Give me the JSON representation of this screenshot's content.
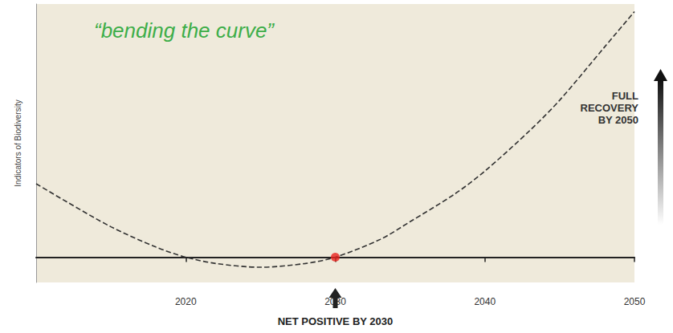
{
  "chart_data": {
    "type": "line",
    "title": "“bending the curve”",
    "y_label": "Indicators of Biodiversity",
    "x": [
      2010,
      2012,
      2015,
      2018,
      2020,
      2022,
      2025,
      2028,
      2030,
      2033,
      2035,
      2038,
      2040,
      2043,
      2045,
      2048,
      2050
    ],
    "values": [
      29,
      22,
      12,
      4,
      0,
      -2.5,
      -4,
      -2.5,
      0,
      7,
      14,
      25,
      34,
      50,
      62,
      83,
      97
    ],
    "color": "#333333",
    "line_style": "dashed",
    "marker": "none",
    "xlim": [
      2010,
      2050
    ],
    "xticks": [
      2020,
      2030,
      2040,
      2050
    ],
    "ylim": [
      -10,
      100
    ],
    "tick_labels": "x",
    "grid": false,
    "highlight": {
      "x": 2030,
      "y": 0,
      "color": "#e8231e"
    },
    "annotations": [
      {
        "lines": [
          "FULL",
          "RECOVERY",
          "BY 2050"
        ]
      },
      {
        "text": "NET POSITIVE BY 2030",
        "x": 2030
      }
    ]
  }
}
